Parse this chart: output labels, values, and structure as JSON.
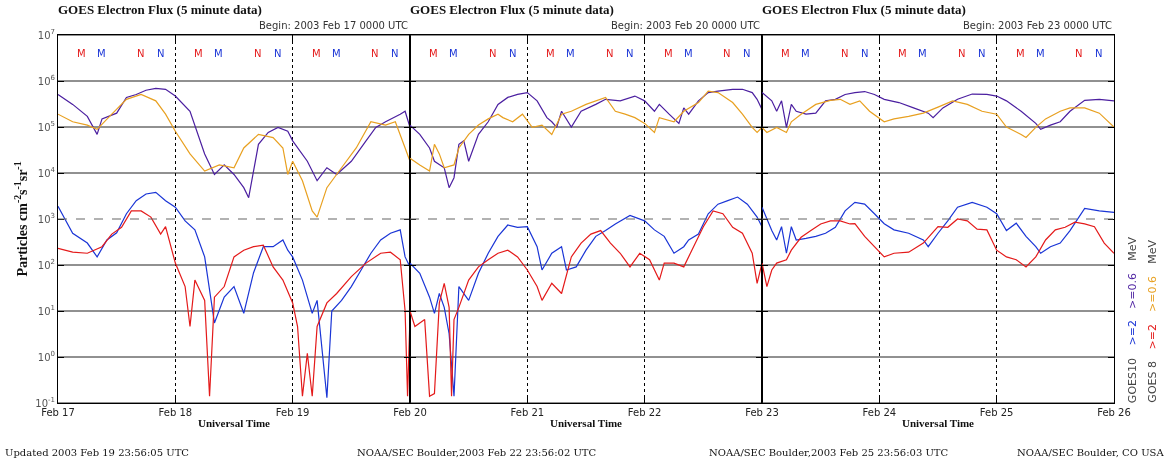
{
  "chart_data": [
    {
      "type": "line",
      "title": "GOES Electron Flux (5 minute data)",
      "subtitle": "Begin: 2003 Feb 17 0000 UTC",
      "xlabel": "Universal Time",
      "ylabel": "Particles cm$^{-2}$s$^{-1}$sr$^{-1}$",
      "xlim": [
        "2003-02-17",
        "2003-02-20"
      ],
      "xticks": [
        {
          "value": "2003-02-17",
          "label": "Feb 17"
        },
        {
          "value": "2003-02-18",
          "label": "Feb 18"
        },
        {
          "value": "2003-02-19",
          "label": "Feb 19"
        },
        {
          "value": "2003-02-20",
          "label": "Feb 20"
        }
      ],
      "ylim": [
        0.1,
        10000000
      ],
      "yticks": [
        {
          "value": 0.1,
          "label": "10$^{-1}$"
        },
        {
          "value": 1,
          "label": "10$^{0}$"
        },
        {
          "value": 10,
          "label": "10$^{1}$"
        },
        {
          "value": 100,
          "label": "10$^{2}$"
        },
        {
          "value": 1000,
          "label": "10$^{3}$"
        },
        {
          "value": 10000,
          "label": "10$^{4}$"
        },
        {
          "value": 100000,
          "label": "10$^{5}$"
        },
        {
          "value": 1000000,
          "label": "10$^{6}$"
        },
        {
          "value": 10000000,
          "label": "10$^{7}$"
        }
      ],
      "log": true,
      "grid": true,
      "ref_lines": [
        {
          "axis": "y",
          "value": 1000,
          "line_style": "dashed",
          "color": "#666666"
        }
      ],
      "annotations": [
        "Updated 2003 Feb 19 23:56:05 UTC",
        "M",
        "M",
        "N",
        "N",
        "M",
        "M",
        "N",
        "N",
        "M",
        "M",
        "N",
        "N"
      ],
      "series": [
        {
          "color": "#4b1fa0",
          "x": [
            "2003-02-17T00:00",
            "2003-02-17T03:00",
            "2003-02-17T06:00",
            "2003-02-17T08:00",
            "2003-02-17T09:00",
            "2003-02-17T12:00",
            "2003-02-17T14:00",
            "2003-02-17T16:00",
            "2003-02-17T18:00",
            "2003-02-17T20:00",
            "2003-02-17T22:00",
            "2003-02-18T00:00",
            "2003-02-18T03:00",
            "2003-02-18T06:00",
            "2003-02-18T08:00",
            "2003-02-18T10:00",
            "2003-02-18T12:00",
            "2003-02-18T14:00",
            "2003-02-18T15:00",
            "2003-02-18T17:00",
            "2003-02-18T19:00",
            "2003-02-18T21:00",
            "2003-02-18T23:00",
            "2003-02-19T00:00",
            "2003-02-19T03:00",
            "2003-02-19T05:00",
            "2003-02-19T07:00",
            "2003-02-19T09:00",
            "2003-02-19T12:00",
            "2003-02-19T15:00",
            "2003-02-19T17:00",
            "2003-02-19T19:00",
            "2003-02-19T22:00",
            "2003-02-19T23:00",
            "2003-02-20T00:00"
          ],
          "values": [
            510000,
            310000,
            170000,
            69000,
            150000,
            200000,
            440000,
            510000,
            630000,
            690000,
            660000,
            470000,
            220000,
            26000,
            9300,
            15000,
            9300,
            4800,
            2900,
            42000,
            76000,
            98000,
            81000,
            50000,
            18000,
            6800,
            13000,
            9300,
            18000,
            50000,
            98000,
            130000,
            190000,
            220000,
            98000
          ]
        },
        {
          "color": "#e8a020",
          "x": [
            "2003-02-17T00:00",
            "2003-02-17T03:00",
            "2003-02-17T06:00",
            "2003-02-17T08:00",
            "2003-02-17T11:00",
            "2003-02-17T14:00",
            "2003-02-17T17:00",
            "2003-02-17T20:00",
            "2003-02-17T22:00",
            "2003-02-18T00:00",
            "2003-02-18T03:00",
            "2003-02-18T06:00",
            "2003-02-18T09:00",
            "2003-02-18T12:00",
            "2003-02-18T14:00",
            "2003-02-18T17:00",
            "2003-02-18T20:00",
            "2003-02-18T22:00",
            "2003-02-18T23:00",
            "2003-02-19T00:00",
            "2003-02-19T02:00",
            "2003-02-19T04:00",
            "2003-02-19T05:00",
            "2003-02-19T07:00",
            "2003-02-19T10:00",
            "2003-02-19T13:00",
            "2003-02-19T16:00",
            "2003-02-19T19:00",
            "2003-02-19T21:00",
            "2003-02-19T23:00",
            "2003-02-20T00:00"
          ],
          "values": [
            190000,
            130000,
            110000,
            89000,
            190000,
            400000,
            510000,
            370000,
            190000,
            81000,
            26000,
            11000,
            15000,
            13000,
            35000,
            69000,
            59000,
            35000,
            9300,
            18000,
            6800,
            1500,
            1100,
            4800,
            13000,
            35000,
            130000,
            110000,
            130000,
            35000,
            18000
          ]
        },
        {
          "color": "#1a35d6",
          "x": [
            "2003-02-17T00:00",
            "2003-02-17T03:00",
            "2003-02-17T06:00",
            "2003-02-17T08:00",
            "2003-02-17T10:00",
            "2003-02-17T12:00",
            "2003-02-17T14:00",
            "2003-02-17T16:00",
            "2003-02-17T18:00",
            "2003-02-17T20:00",
            "2003-02-17T22:00",
            "2003-02-18T00:00",
            "2003-02-18T02:00",
            "2003-02-18T04:00",
            "2003-02-18T06:00",
            "2003-02-18T08:00",
            "2003-02-18T10:00",
            "2003-02-18T12:00",
            "2003-02-18T14:00",
            "2003-02-18T16:00",
            "2003-02-18T18:00",
            "2003-02-18T20:00",
            "2003-02-18T22:00",
            "2003-02-18T23:00",
            "2003-02-19T00:00",
            "2003-02-19T02:00",
            "2003-02-19T04:00",
            "2003-02-19T05:00",
            "2003-02-19T07:00",
            "2003-02-19T08:00",
            "2003-02-19T10:00",
            "2003-02-19T12:00",
            "2003-02-19T14:00",
            "2003-02-19T16:00",
            "2003-02-19T18:00",
            "2003-02-19T20:00",
            "2003-02-19T22:00",
            "2003-02-19T23:00",
            "2003-02-20T00:00"
          ],
          "values": [
            1900,
            490,
            300,
            150,
            350,
            500,
            1300,
            2500,
            3500,
            3800,
            2500,
            1800,
            910,
            580,
            150,
            5.5,
            20,
            34,
            8.9,
            68,
            250,
            250,
            350,
            210,
            150,
            47,
            8.9,
            17,
            0.13,
            10,
            17,
            34,
            78,
            180,
            350,
            490,
            580,
            150,
            91
          ]
        },
        {
          "color": "#e41a1a",
          "x": [
            "2003-02-17T00:00",
            "2003-02-17T03:00",
            "2003-02-17T06:00",
            "2003-02-17T09:00",
            "2003-02-17T11:00",
            "2003-02-17T13:00",
            "2003-02-17T15:00",
            "2003-02-17T17:00",
            "2003-02-17T19:00",
            "2003-02-17T21:00",
            "2003-02-17T22:00",
            "2003-02-18T00:00",
            "2003-02-18T02:00",
            "2003-02-18T03:00",
            "2003-02-18T04:00",
            "2003-02-18T06:00",
            "2003-02-18T07:00",
            "2003-02-18T08:00",
            "2003-02-18T10:00",
            "2003-02-18T12:00",
            "2003-02-18T14:00",
            "2003-02-18T16:00",
            "2003-02-18T18:00",
            "2003-02-18T20:00",
            "2003-02-18T22:00",
            "2003-02-19T00:00",
            "2003-02-19T01:00",
            "2003-02-19T02:00",
            "2003-02-19T03:00",
            "2003-02-19T04:00",
            "2003-02-19T05:00",
            "2003-02-19T07:00",
            "2003-02-19T09:00",
            "2003-02-19T12:00",
            "2003-02-19T15:00",
            "2003-02-19T18:00",
            "2003-02-19T20:00",
            "2003-02-19T22:00",
            "2003-02-19T23:00",
            "2003-02-19T23:30",
            "2003-02-20T00:00"
          ],
          "values": [
            230,
            190,
            180,
            250,
            470,
            660,
            1500,
            1500,
            1100,
            470,
            680,
            110,
            34,
            4.6,
            47,
            17,
            0.14,
            20,
            34,
            150,
            210,
            250,
            270,
            91,
            47,
            15,
            4.6,
            0.14,
            1.2,
            0.14,
            4.6,
            15,
            24,
            56,
            110,
            180,
            190,
            130,
            10,
            0.14,
            7.6
          ]
        }
      ]
    },
    {
      "type": "line",
      "title": "GOES Electron Flux (5 minute data)",
      "subtitle": "Begin: 2003 Feb 20 0000 UTC",
      "xlabel": "Universal Time",
      "xlim": [
        "2003-02-20",
        "2003-02-23"
      ],
      "xticks": [
        {
          "value": "2003-02-20",
          "label": null
        },
        {
          "value": "2003-02-21",
          "label": "Feb 21"
        },
        {
          "value": "2003-02-22",
          "label": "Feb 22"
        },
        {
          "value": "2003-02-23",
          "label": "Feb 23"
        }
      ],
      "ylim": [
        0.1,
        10000000
      ],
      "yticks": [
        0.1,
        1,
        10,
        100,
        1000,
        10000,
        100000,
        1000000,
        10000000
      ],
      "log": true,
      "grid": true,
      "tick_labels": "x",
      "ref_lines": [
        {
          "axis": "y",
          "value": 1000,
          "line_style": "dashed",
          "color": "#666666"
        }
      ],
      "annotations": [
        "NOAA/SEC Boulder,2003 Feb 22 23:56:02 UTC",
        "M",
        "M",
        "N",
        "N",
        "M",
        "M",
        "N",
        "N",
        "M",
        "M",
        "N",
        "N"
      ],
      "series": [
        {
          "color": "#4b1fa0",
          "x": [
            "2003-02-20T00:00",
            "2003-02-20T02:00",
            "2003-02-20T04:00",
            "2003-02-20T05:00",
            "2003-02-20T07:00",
            "2003-02-20T08:00",
            "2003-02-20T09:00",
            "2003-02-20T10:00",
            "2003-02-20T11:00",
            "2003-02-20T12:00",
            "2003-02-20T14:00",
            "2003-02-20T16:00",
            "2003-02-20T18:00",
            "2003-02-20T20:00",
            "2003-02-20T22:00",
            "2003-02-21T00:00",
            "2003-02-21T02:00",
            "2003-02-21T04:00",
            "2003-02-21T05:00",
            "2003-02-21T06:00",
            "2003-02-21T07:00",
            "2003-02-21T09:00",
            "2003-02-21T11:00",
            "2003-02-21T14:00",
            "2003-02-21T16:00",
            "2003-02-21T19:00",
            "2003-02-21T22:00",
            "2003-02-22T00:00",
            "2003-02-22T02:00",
            "2003-02-22T03:00",
            "2003-02-22T05:00",
            "2003-02-22T07:00",
            "2003-02-22T08:00",
            "2003-02-22T09:00",
            "2003-02-22T11:00",
            "2003-02-22T13:00",
            "2003-02-22T15:00",
            "2003-02-22T18:00",
            "2003-02-22T20:00",
            "2003-02-22T22:00",
            "2003-02-22T23:00",
            "2003-02-23T00:00"
          ],
          "values": [
            110000,
            69000,
            35000,
            18000,
            13000,
            4800,
            7900,
            42000,
            50000,
            18000,
            69000,
            130000,
            310000,
            440000,
            510000,
            560000,
            370000,
            160000,
            130000,
            98000,
            220000,
            100000,
            220000,
            310000,
            400000,
            370000,
            470000,
            370000,
            220000,
            310000,
            190000,
            120000,
            260000,
            190000,
            370000,
            560000,
            600000,
            660000,
            660000,
            560000,
            400000,
            240000
          ]
        },
        {
          "color": "#e8a020",
          "x": [
            "2003-02-20T00:00",
            "2003-02-20T02:00",
            "2003-02-20T04:00",
            "2003-02-20T05:00",
            "2003-02-20T06:00",
            "2003-02-20T07:00",
            "2003-02-20T09:00",
            "2003-02-20T10:00",
            "2003-02-20T12:00",
            "2003-02-20T14:00",
            "2003-02-20T16:00",
            "2003-02-20T18:00",
            "2003-02-20T19:00",
            "2003-02-20T21:00",
            "2003-02-20T23:00",
            "2003-02-21T01:00",
            "2003-02-21T03:00",
            "2003-02-21T05:00",
            "2003-02-21T07:00",
            "2003-02-21T09:00",
            "2003-02-21T12:00",
            "2003-02-21T16:00",
            "2003-02-21T18:00",
            "2003-02-21T20:00",
            "2003-02-21T22:00",
            "2003-02-22T00:00",
            "2003-02-22T02:00",
            "2003-02-22T03:00",
            "2003-02-22T06:00",
            "2003-02-22T08:00",
            "2003-02-22T11:00",
            "2003-02-22T13:00",
            "2003-02-22T15:00",
            "2003-02-22T18:00",
            "2003-02-22T20:00",
            "2003-02-22T22:00",
            "2003-02-22T23:00",
            "2003-02-23T00:00"
          ],
          "values": [
            21000,
            15000,
            11000,
            42000,
            26000,
            13000,
            15000,
            35000,
            69000,
            110000,
            150000,
            190000,
            160000,
            130000,
            190000,
            98000,
            110000,
            69000,
            190000,
            220000,
            310000,
            440000,
            220000,
            190000,
            160000,
            120000,
            76000,
            160000,
            130000,
            220000,
            340000,
            600000,
            560000,
            340000,
            190000,
            98000,
            76000,
            98000
          ]
        },
        {
          "color": "#1a35d6",
          "x": [
            "2003-02-20T00:00",
            "2003-02-20T02:00",
            "2003-02-20T04:00",
            "2003-02-20T05:00",
            "2003-02-20T06:00",
            "2003-02-20T07:00",
            "2003-02-20T08:00",
            "2003-02-20T09:00",
            "2003-02-20T10:00",
            "2003-02-20T12:00",
            "2003-02-20T14:00",
            "2003-02-20T16:00",
            "2003-02-20T18:00",
            "2003-02-20T20:00",
            "2003-02-20T22:00",
            "2003-02-21T00:00",
            "2003-02-21T02:00",
            "2003-02-21T03:00",
            "2003-02-21T05:00",
            "2003-02-21T07:00",
            "2003-02-21T08:00",
            "2003-02-21T10:00",
            "2003-02-21T12:00",
            "2003-02-21T14:00",
            "2003-02-21T16:00",
            "2003-02-21T18:00",
            "2003-02-21T21:00",
            "2003-02-22T00:00",
            "2003-02-22T02:00",
            "2003-02-22T04:00",
            "2003-02-22T06:00",
            "2003-02-22T08:00",
            "2003-02-22T09:00",
            "2003-02-22T11:00",
            "2003-02-22T13:00",
            "2003-02-22T15:00",
            "2003-02-22T17:00",
            "2003-02-22T19:00",
            "2003-02-22T21:00",
            "2003-02-22T23:00",
            "2003-02-23T00:00"
          ],
          "values": [
            110,
            66,
            20,
            8.9,
            24,
            12,
            3.2,
            0.14,
            34,
            17,
            66,
            180,
            420,
            740,
            660,
            680,
            250,
            78,
            180,
            250,
            78,
            91,
            210,
            420,
            560,
            780,
            1200,
            910,
            580,
            420,
            180,
            250,
            350,
            470,
            1300,
            2100,
            2500,
            3000,
            2100,
            1100,
            680
          ]
        },
        {
          "color": "#e41a1a",
          "x": [
            "2003-02-20T00:00",
            "2003-02-20T01:00",
            "2003-02-20T03:00",
            "2003-02-20T04:00",
            "2003-02-20T05:00",
            "2003-02-20T06:00",
            "2003-02-20T07:00",
            "2003-02-20T08:00",
            "2003-02-20T08:30",
            "2003-02-20T09:00",
            "2003-02-20T10:00",
            "2003-02-20T12:00",
            "2003-02-20T14:00",
            "2003-02-20T16:00",
            "2003-02-20T18:00",
            "2003-02-20T20:00",
            "2003-02-20T22:00",
            "2003-02-21T00:00",
            "2003-02-21T02:00",
            "2003-02-21T03:00",
            "2003-02-21T05:00",
            "2003-02-21T07:00",
            "2003-02-21T09:00",
            "2003-02-21T11:00",
            "2003-02-21T13:00",
            "2003-02-21T15:00",
            "2003-02-21T17:00",
            "2003-02-21T19:00",
            "2003-02-21T21:00",
            "2003-02-21T23:00",
            "2003-02-22T01:00",
            "2003-02-22T03:00",
            "2003-02-22T04:00",
            "2003-02-22T06:00",
            "2003-02-22T08:00",
            "2003-02-22T10:00",
            "2003-02-22T12:00",
            "2003-02-22T14:00",
            "2003-02-22T16:00",
            "2003-02-22T18:00",
            "2003-02-22T20:00",
            "2003-02-22T22:00",
            "2003-02-22T23:00",
            "2003-02-23T00:00"
          ],
          "values": [
            10,
            4.6,
            6.5,
            0.14,
            0.16,
            15,
            40,
            12,
            0.14,
            6.5,
            12,
            47,
            91,
            130,
            180,
            210,
            150,
            78,
            34,
            17,
            40,
            24,
            150,
            300,
            470,
            560,
            300,
            180,
            91,
            180,
            130,
            47,
            110,
            110,
            91,
            250,
            680,
            1500,
            1300,
            660,
            490,
            180,
            40,
            110
          ]
        }
      ]
    },
    {
      "type": "line",
      "title": "GOES Electron Flux (5 minute data)",
      "subtitle": "Begin: 2003 Feb 23 0000 UTC",
      "xlabel": "Universal Time",
      "xlim": [
        "2003-02-23",
        "2003-02-26"
      ],
      "xticks": [
        {
          "value": "2003-02-23",
          "label": null
        },
        {
          "value": "2003-02-24",
          "label": "Feb 24"
        },
        {
          "value": "2003-02-25",
          "label": "Feb 25"
        },
        {
          "value": "2003-02-26",
          "label": "Feb 26"
        }
      ],
      "ylim": [
        0.1,
        10000000
      ],
      "yticks": [
        0.1,
        1,
        10,
        100,
        1000,
        10000,
        100000,
        1000000,
        10000000
      ],
      "log": true,
      "grid": true,
      "tick_labels": "x",
      "legend": "right",
      "ref_lines": [
        {
          "axis": "y",
          "value": 1000,
          "line_style": "dashed",
          "color": "#666666"
        }
      ],
      "annotations": [
        "NOAA/SEC Boulder,2003 Feb 25 23:56:03 UTC",
        "NOAA/SEC Boulder, CO USA",
        "M",
        "M",
        "N",
        "N",
        "M",
        "M",
        "N",
        "N",
        "M",
        "M",
        "N",
        "N",
        "GOES10",
        "GOES 8",
        "MeV",
        "MeV"
      ],
      "series": [
        {
          "name": ">=0.6",
          "color": "#4b1fa0",
          "x": [
            "2003-02-23T00:00",
            "2003-02-23T02:00",
            "2003-02-23T03:00",
            "2003-02-23T04:00",
            "2003-02-23T05:00",
            "2003-02-23T06:00",
            "2003-02-23T07:00",
            "2003-02-23T09:00",
            "2003-02-23T11:00",
            "2003-02-23T13:00",
            "2003-02-23T15:00",
            "2003-02-23T17:00",
            "2003-02-23T19:00",
            "2003-02-23T21:00",
            "2003-02-23T23:00",
            "2003-02-24T01:00",
            "2003-02-24T04:00",
            "2003-02-24T07:00",
            "2003-02-24T10:00",
            "2003-02-24T11:00",
            "2003-02-24T13:00",
            "2003-02-24T16:00",
            "2003-02-24T19:00",
            "2003-02-24T22:00",
            "2003-02-25T00:00",
            "2003-02-25T02:00",
            "2003-02-25T05:00",
            "2003-02-25T08:00",
            "2003-02-25T09:00",
            "2003-02-25T11:00",
            "2003-02-25T13:00",
            "2003-02-25T15:00",
            "2003-02-25T18:00",
            "2003-02-25T21:00",
            "2003-02-26T00:00"
          ],
          "values": [
            560000,
            370000,
            220000,
            370000,
            98000,
            310000,
            220000,
            190000,
            200000,
            370000,
            400000,
            510000,
            560000,
            590000,
            510000,
            400000,
            340000,
            260000,
            200000,
            160000,
            260000,
            400000,
            520000,
            510000,
            470000,
            370000,
            220000,
            120000,
            89000,
            110000,
            130000,
            220000,
            380000,
            400000,
            370000
          ]
        },
        {
          "name": ">=0.6",
          "color": "#e8a020",
          "x": [
            "2003-02-23T00:00",
            "2003-02-23T01:00",
            "2003-02-23T03:00",
            "2003-02-23T05:00",
            "2003-02-23T06:00",
            "2003-02-23T08:00",
            "2003-02-23T11:00",
            "2003-02-23T14:00",
            "2003-02-23T16:00",
            "2003-02-23T18:00",
            "2003-02-23T20:00",
            "2003-02-23T22:00",
            "2003-02-24T01:00",
            "2003-02-24T03:00",
            "2003-02-24T06:00",
            "2003-02-24T09:00",
            "2003-02-24T12:00",
            "2003-02-24T15:00",
            "2003-02-24T18:00",
            "2003-02-24T21:00",
            "2003-02-25T00:00",
            "2003-02-25T02:00",
            "2003-02-25T05:00",
            "2003-02-25T06:00",
            "2003-02-25T08:00",
            "2003-02-25T10:00",
            "2003-02-25T13:00",
            "2003-02-25T15:00",
            "2003-02-25T18:00",
            "2003-02-25T21:00",
            "2003-02-26T00:00"
          ],
          "values": [
            98000,
            76000,
            98000,
            76000,
            130000,
            190000,
            310000,
            380000,
            400000,
            310000,
            370000,
            220000,
            130000,
            150000,
            170000,
            200000,
            270000,
            370000,
            310000,
            220000,
            190000,
            100000,
            69000,
            59000,
            98000,
            150000,
            220000,
            260000,
            260000,
            200000,
            100000
          ]
        },
        {
          "name": ">=2",
          "color": "#1a35d6",
          "x": [
            "2003-02-23T00:00",
            "2003-02-23T02:00",
            "2003-02-23T03:00",
            "2003-02-23T04:00",
            "2003-02-23T05:00",
            "2003-02-23T06:00",
            "2003-02-23T07:00",
            "2003-02-23T09:00",
            "2003-02-23T11:00",
            "2003-02-23T13:00",
            "2003-02-23T15:00",
            "2003-02-23T17:00",
            "2003-02-23T19:00",
            "2003-02-23T21:00",
            "2003-02-23T23:00",
            "2003-02-24T01:00",
            "2003-02-24T03:00",
            "2003-02-24T06:00",
            "2003-02-24T09:00",
            "2003-02-24T10:00",
            "2003-02-24T12:00",
            "2003-02-24T14:00",
            "2003-02-24T16:00",
            "2003-02-24T19:00",
            "2003-02-24T22:00",
            "2003-02-25T00:00",
            "2003-02-25T02:00",
            "2003-02-25T04:00",
            "2003-02-25T06:00",
            "2003-02-25T08:00",
            "2003-02-25T09:00",
            "2003-02-25T11:00",
            "2003-02-25T13:00",
            "2003-02-25T15:00",
            "2003-02-25T18:00",
            "2003-02-25T21:00",
            "2003-02-26T00:00"
          ],
          "values": [
            1800,
            560,
            350,
            680,
            180,
            680,
            350,
            380,
            420,
            490,
            660,
            1500,
            2300,
            2100,
            1300,
            790,
            580,
            490,
            350,
            250,
            490,
            910,
            1800,
            2300,
            1800,
            1300,
            560,
            810,
            420,
            250,
            180,
            250,
            300,
            560,
            1700,
            1500,
            1400
          ]
        },
        {
          "name": ">=2",
          "color": "#e41a1a",
          "x": [
            "2003-02-23T00:00",
            "2003-02-23T01:00",
            "2003-02-23T02:00",
            "2003-02-23T03:00",
            "2003-02-23T05:00",
            "2003-02-23T06:00",
            "2003-02-23T08:00",
            "2003-02-23T10:00",
            "2003-02-23T12:00",
            "2003-02-23T14:00",
            "2003-02-23T16:00",
            "2003-02-23T18:00",
            "2003-02-23T19:00",
            "2003-02-23T21:00",
            "2003-02-23T23:00",
            "2003-02-24T01:00",
            "2003-02-24T03:00",
            "2003-02-24T06:00",
            "2003-02-24T09:00",
            "2003-02-24T12:00",
            "2003-02-24T14:00",
            "2003-02-24T16:00",
            "2003-02-24T18:00",
            "2003-02-24T20:00",
            "2003-02-24T22:00",
            "2003-02-25T00:00",
            "2003-02-25T02:00",
            "2003-02-25T04:00",
            "2003-02-25T06:00",
            "2003-02-25T08:00",
            "2003-02-25T10:00",
            "2003-02-25T12:00",
            "2003-02-25T14:00",
            "2003-02-25T16:00",
            "2003-02-25T18:00",
            "2003-02-25T20:00",
            "2003-02-25T22:00",
            "2003-02-26T00:00"
          ],
          "values": [
            110,
            34,
            78,
            110,
            130,
            210,
            400,
            560,
            780,
            910,
            910,
            780,
            790,
            420,
            250,
            150,
            180,
            190,
            300,
            680,
            660,
            1000,
            910,
            600,
            580,
            210,
            150,
            130,
            91,
            150,
            350,
            580,
            660,
            850,
            780,
            680,
            300,
            180
          ]
        }
      ]
    }
  ]
}
